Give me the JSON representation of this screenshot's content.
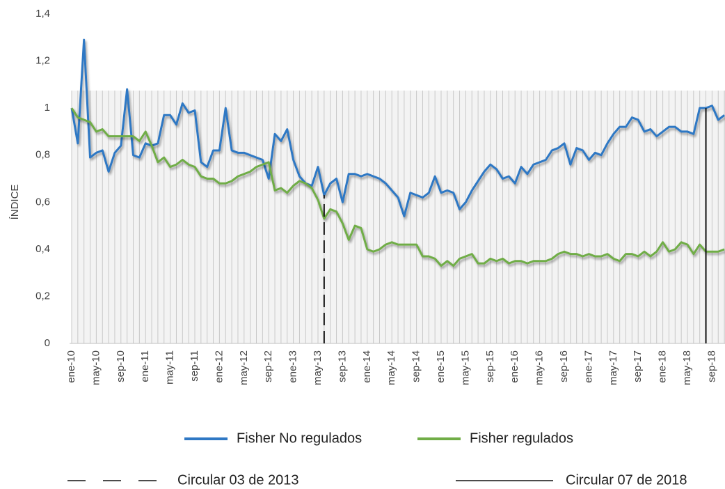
{
  "chart_data": {
    "type": "line",
    "ylabel": "ÍNDICE",
    "categories": [
      "ene-10",
      null,
      null,
      null,
      "may-10",
      null,
      null,
      null,
      "sep-10",
      null,
      null,
      null,
      "ene-11",
      null,
      null,
      null,
      "may-11",
      null,
      null,
      null,
      "sep-11",
      null,
      null,
      null,
      "ene-12",
      null,
      null,
      null,
      "may-12",
      null,
      null,
      null,
      "sep-12",
      null,
      null,
      null,
      "ene-13",
      null,
      null,
      null,
      "may-13",
      null,
      null,
      null,
      "sep-13",
      null,
      null,
      null,
      "ene-14",
      null,
      null,
      null,
      "may-14",
      null,
      null,
      null,
      "sep-14",
      null,
      null,
      null,
      "ene-15",
      null,
      null,
      null,
      "may-15",
      null,
      null,
      null,
      "sep-15",
      null,
      null,
      null,
      "ene-16",
      null,
      null,
      null,
      "may-16",
      null,
      null,
      null,
      "sep-16",
      null,
      null,
      null,
      "ene-17",
      null,
      null,
      null,
      "may-17",
      null,
      null,
      null,
      "sep-17",
      null,
      null,
      null,
      "ene-18",
      null,
      null,
      null,
      "may-18",
      null,
      null,
      null,
      "sep-18",
      null,
      null
    ],
    "series": [
      {
        "name": "Fisher No regulados",
        "color": "#2f78c4",
        "values": [
          1.0,
          0.85,
          1.29,
          0.79,
          0.81,
          0.82,
          0.73,
          0.81,
          0.84,
          1.08,
          0.8,
          0.79,
          0.85,
          0.84,
          0.85,
          0.97,
          0.97,
          0.93,
          1.02,
          0.98,
          0.99,
          0.77,
          0.75,
          0.82,
          0.82,
          1.0,
          0.82,
          0.81,
          0.81,
          0.8,
          0.79,
          0.78,
          0.7,
          0.89,
          0.86,
          0.91,
          0.78,
          0.71,
          0.68,
          0.67,
          0.75,
          0.63,
          0.68,
          0.7,
          0.6,
          0.72,
          0.72,
          0.71,
          0.72,
          0.71,
          0.7,
          0.68,
          0.65,
          0.62,
          0.54,
          0.64,
          0.63,
          0.62,
          0.64,
          0.71,
          0.64,
          0.65,
          0.64,
          0.57,
          0.6,
          0.65,
          0.69,
          0.73,
          0.76,
          0.74,
          0.7,
          0.71,
          0.68,
          0.75,
          0.72,
          0.76,
          0.77,
          0.78,
          0.82,
          0.83,
          0.85,
          0.76,
          0.83,
          0.82,
          0.78,
          0.81,
          0.8,
          0.85,
          0.89,
          0.92,
          0.92,
          0.96,
          0.95,
          0.9,
          0.91,
          0.88,
          0.9,
          0.92,
          0.92,
          0.9,
          0.9,
          0.89,
          1.0,
          1.0,
          1.01,
          0.95,
          0.97
        ]
      },
      {
        "name": "Fisher regulados",
        "color": "#70ad47",
        "values": [
          1.0,
          0.96,
          0.95,
          0.94,
          0.9,
          0.91,
          0.88,
          0.88,
          0.88,
          0.88,
          0.88,
          0.86,
          0.9,
          0.84,
          0.77,
          0.79,
          0.75,
          0.76,
          0.78,
          0.76,
          0.75,
          0.71,
          0.7,
          0.7,
          0.68,
          0.68,
          0.69,
          0.71,
          0.72,
          0.73,
          0.75,
          0.76,
          0.77,
          0.65,
          0.66,
          0.64,
          0.67,
          0.69,
          0.68,
          0.66,
          0.61,
          0.53,
          0.57,
          0.56,
          0.51,
          0.44,
          0.5,
          0.49,
          0.4,
          0.39,
          0.4,
          0.42,
          0.43,
          0.42,
          0.42,
          0.42,
          0.42,
          0.37,
          0.37,
          0.36,
          0.33,
          0.35,
          0.33,
          0.36,
          0.37,
          0.38,
          0.34,
          0.34,
          0.36,
          0.35,
          0.36,
          0.34,
          0.35,
          0.35,
          0.34,
          0.35,
          0.35,
          0.35,
          0.36,
          0.38,
          0.39,
          0.38,
          0.38,
          0.37,
          0.38,
          0.37,
          0.37,
          0.38,
          0.36,
          0.35,
          0.38,
          0.38,
          0.37,
          0.39,
          0.37,
          0.39,
          0.43,
          0.39,
          0.4,
          0.43,
          0.42,
          0.38,
          0.42,
          0.39,
          0.39,
          0.39,
          0.4
        ]
      }
    ],
    "ylim": [
      0,
      1.4
    ],
    "yticks": [
      0,
      {
        "value": 0.2,
        "label": "0,2"
      },
      {
        "value": 0.4,
        "label": "0,4"
      },
      {
        "value": 0.6,
        "label": "0,6"
      },
      {
        "value": 0.8,
        "label": "0,8"
      },
      1,
      {
        "value": 1.2,
        "label": "1,2"
      },
      {
        "value": 1.4,
        "label": "1,4"
      }
    ],
    "markers": [
      {
        "label": "Circular 03 de 2013",
        "index": 41,
        "style": "dashed"
      },
      {
        "label": "Circular 07 de 2018",
        "index": 103,
        "style": "solid"
      }
    ]
  }
}
